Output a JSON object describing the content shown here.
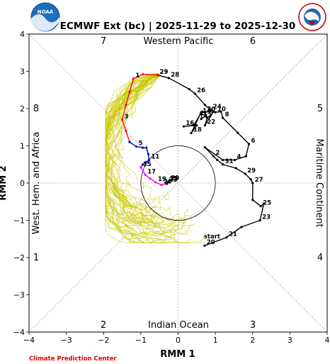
{
  "header": {
    "title": "ECMWF Ext (bc) | 2025-11-29 to 2025-12-30",
    "credit": "Climate Prediction Center",
    "left_logo_text": "NOAA",
    "right_logo_text": "NATIONAL WEATHER SERVICE"
  },
  "colors": {
    "observed": "#000000",
    "week1": "#ff0000",
    "week2": "#0000cc",
    "week3": "#ff00ff",
    "members": "#c8c800",
    "credit": "#e00000"
  },
  "regions": {
    "top": "Western Pacific",
    "bottom": "Indian Ocean",
    "left": "West. Hem. and Africa",
    "right": "Maritime Continent"
  },
  "phases": [
    "1",
    "2",
    "3",
    "4",
    "5",
    "6",
    "7",
    "8"
  ],
  "chart_data": {
    "type": "line",
    "title": "ECMWF Ext (bc) | 2025-11-29 to 2025-12-30",
    "xlabel": "RMM 1",
    "ylabel": "RMM 2",
    "xlim": [
      -4,
      4
    ],
    "ylim": [
      -4,
      4
    ],
    "xticks": [
      "−4",
      "−3",
      "−2",
      "−1",
      "0",
      "1",
      "2",
      "3",
      "4"
    ],
    "yticks": [
      "−4",
      "−3",
      "−2",
      "−1",
      "0",
      "1",
      "2",
      "3",
      "4"
    ],
    "unit_circle_radius": 1,
    "grid": false,
    "observed": {
      "name": "observed",
      "points": [
        {
          "x": 0.71,
          "y": -1.68,
          "label": "start"
        },
        {
          "x": 0.71,
          "y": -1.68,
          "label": "20"
        },
        {
          "x": 1.3,
          "y": -1.46,
          "label": "21"
        },
        {
          "x": 1.7,
          "y": -1.18,
          "label": ""
        },
        {
          "x": 2.2,
          "y": -1.0,
          "label": "23"
        },
        {
          "x": 2.3,
          "y": -0.55,
          "label": ""
        },
        {
          "x": 2.22,
          "y": -0.62,
          "label": "25"
        },
        {
          "x": 2.0,
          "y": -0.45,
          "label": ""
        },
        {
          "x": 2.0,
          "y": 0.0,
          "label": "27"
        },
        {
          "x": 1.95,
          "y": 0.1,
          "label": ""
        },
        {
          "x": 1.8,
          "y": 0.25,
          "label": "29"
        },
        {
          "x": 1.55,
          "y": 0.4,
          "label": ""
        },
        {
          "x": 1.2,
          "y": 0.5,
          "label": "31"
        },
        {
          "x": 1.05,
          "y": 0.62,
          "label": ""
        },
        {
          "x": 0.95,
          "y": 0.72,
          "label": "2"
        },
        {
          "x": 0.72,
          "y": 0.96,
          "label": ""
        },
        {
          "x": 1.2,
          "y": 0.62,
          "label": ""
        },
        {
          "x": 1.52,
          "y": 0.62,
          "label": "4"
        },
        {
          "x": 1.82,
          "y": 0.72,
          "label": ""
        },
        {
          "x": 1.9,
          "y": 1.05,
          "label": "6"
        },
        {
          "x": 1.6,
          "y": 1.35,
          "label": ""
        },
        {
          "x": 1.2,
          "y": 1.75,
          "label": "8"
        },
        {
          "x": 1.15,
          "y": 1.92,
          "label": ""
        },
        {
          "x": 1.0,
          "y": 1.9,
          "label": "10"
        },
        {
          "x": 0.65,
          "y": 1.92,
          "label": ""
        },
        {
          "x": 0.62,
          "y": 1.72,
          "label": "12"
        },
        {
          "x": 0.75,
          "y": 1.82,
          "label": ""
        },
        {
          "x": 0.6,
          "y": 1.85,
          "label": "14"
        },
        {
          "x": 0.42,
          "y": 1.55,
          "label": ""
        },
        {
          "x": 0.15,
          "y": 1.52,
          "label": "16"
        },
        {
          "x": 0.5,
          "y": 1.55,
          "label": ""
        },
        {
          "x": 0.35,
          "y": 1.34,
          "label": "18"
        },
        {
          "x": 0.62,
          "y": 1.9,
          "label": ""
        },
        {
          "x": 0.72,
          "y": 1.9,
          "label": "20"
        },
        {
          "x": 0.78,
          "y": 1.75,
          "label": ""
        },
        {
          "x": 0.72,
          "y": 1.55,
          "label": "22"
        },
        {
          "x": 0.95,
          "y": 1.92,
          "label": ""
        },
        {
          "x": 0.88,
          "y": 1.96,
          "label": "24"
        },
        {
          "x": 0.72,
          "y": 2.1,
          "label": ""
        },
        {
          "x": 0.45,
          "y": 2.4,
          "label": "26"
        },
        {
          "x": 0.3,
          "y": 2.52,
          "label": ""
        },
        {
          "x": -0.25,
          "y": 2.82,
          "label": "28"
        },
        {
          "x": -0.55,
          "y": 2.9,
          "label": "29"
        }
      ]
    },
    "forecast": [
      {
        "name": "week1",
        "points": [
          {
            "x": -0.55,
            "y": 2.9,
            "label": "29"
          },
          {
            "x": -0.95,
            "y": 2.92,
            "label": ""
          },
          {
            "x": -1.2,
            "y": 2.8,
            "label": "1"
          },
          {
            "x": -1.3,
            "y": 2.45,
            "label": ""
          },
          {
            "x": -1.4,
            "y": 2.1,
            "label": ""
          },
          {
            "x": -1.5,
            "y": 1.7,
            "label": "3"
          },
          {
            "x": -1.4,
            "y": 1.4,
            "label": ""
          },
          {
            "x": -1.3,
            "y": 1.1,
            "label": ""
          }
        ]
      },
      {
        "name": "week2",
        "points": [
          {
            "x": -1.3,
            "y": 1.1,
            "label": ""
          },
          {
            "x": -1.12,
            "y": 0.98,
            "label": "5"
          },
          {
            "x": -0.95,
            "y": 0.95,
            "label": ""
          },
          {
            "x": -0.85,
            "y": 0.95,
            "label": ""
          },
          {
            "x": -0.8,
            "y": 0.78,
            "label": ""
          },
          {
            "x": -0.78,
            "y": 0.62,
            "label": "11"
          },
          {
            "x": -0.88,
            "y": 0.55,
            "label": ""
          },
          {
            "x": -0.95,
            "y": 0.5,
            "label": ""
          },
          {
            "x": -1.0,
            "y": 0.42,
            "label": "15"
          }
        ]
      },
      {
        "name": "week3",
        "points": [
          {
            "x": -1.0,
            "y": 0.42,
            "label": ""
          },
          {
            "x": -0.88,
            "y": 0.22,
            "label": "17"
          },
          {
            "x": -0.75,
            "y": 0.12,
            "label": ""
          },
          {
            "x": -0.6,
            "y": 0.02,
            "label": "19"
          },
          {
            "x": -0.45,
            "y": -0.05,
            "label": "21"
          },
          {
            "x": -0.3,
            "y": -0.02,
            "label": ""
          }
        ]
      },
      {
        "name": "week4",
        "points": [
          {
            "x": -0.3,
            "y": -0.02,
            "label": ""
          },
          {
            "x": -0.3,
            "y": 0.0,
            "label": "23"
          },
          {
            "x": -0.28,
            "y": 0.03,
            "label": "25"
          },
          {
            "x": -0.25,
            "y": 0.05,
            "label": "29"
          }
        ]
      }
    ]
  }
}
